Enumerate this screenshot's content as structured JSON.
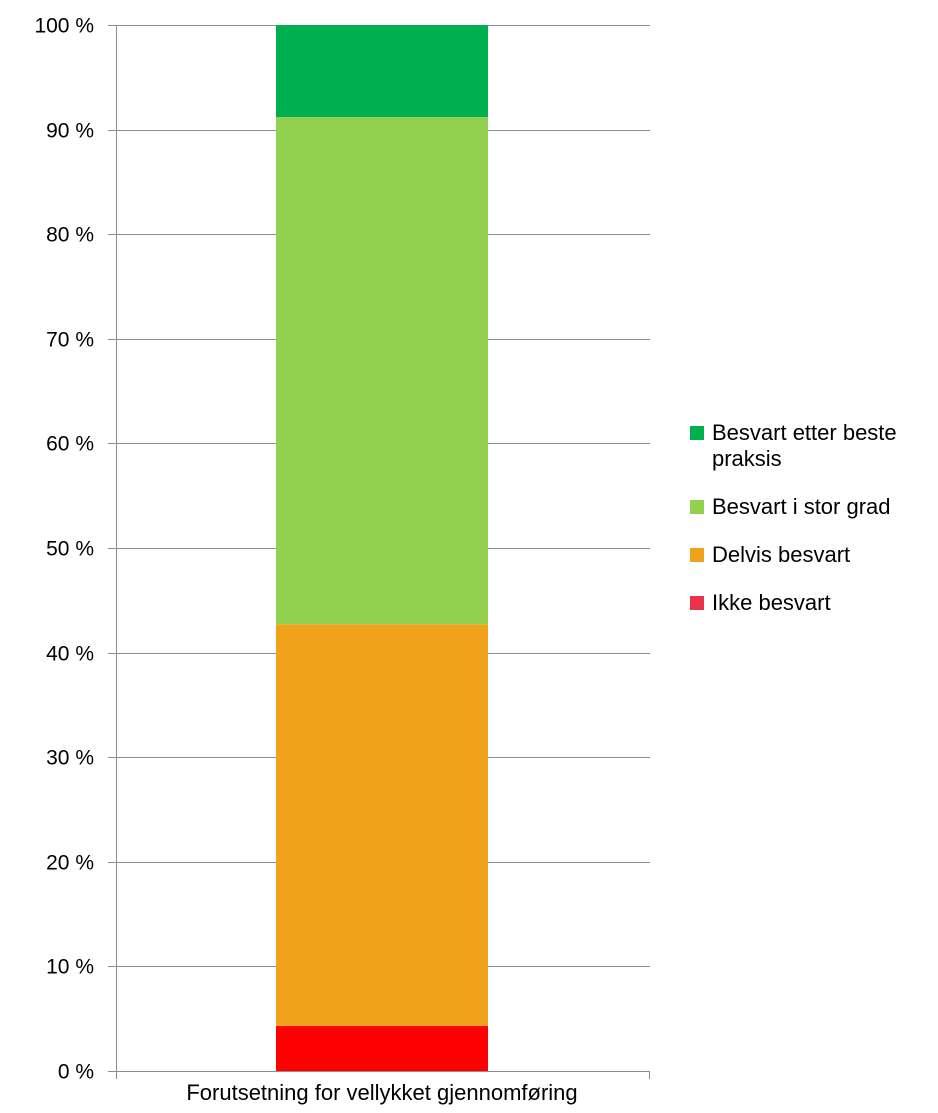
{
  "chart_data": {
    "type": "bar",
    "stacked": true,
    "categories": [
      "Forutsetning for vellykket gjennomføring"
    ],
    "series": [
      {
        "name": "Ikke besvart",
        "values": [
          4.3
        ],
        "color": "#ff0000",
        "legend_color": "#e8334a"
      },
      {
        "name": "Delvis besvart",
        "values": [
          38.4
        ],
        "color": "#f0a31a",
        "legend_color": "#f0a31a"
      },
      {
        "name": "Besvart i stor grad",
        "values": [
          48.5
        ],
        "color": "#92d050",
        "legend_color": "#92d050"
      },
      {
        "name": "Besvart etter beste praksis",
        "values": [
          8.8
        ],
        "color": "#00b050",
        "legend_color": "#00b050"
      }
    ],
    "ylim": [
      0,
      100
    ],
    "yticks": [
      "0 %",
      "10 %",
      "20 %",
      "30 %",
      "40 %",
      "50 %",
      "60 %",
      "70 %",
      "80 %",
      "90 %",
      "100 %"
    ],
    "grid": true,
    "legend_position": "right"
  }
}
